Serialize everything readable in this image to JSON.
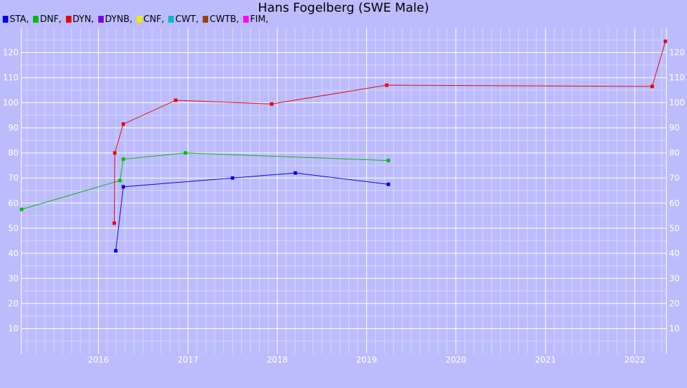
{
  "colors": {
    "background": "#bcbcfd",
    "grid_major": "#ffffff",
    "grid_minor": "#d6d6fe",
    "tick_label": "#ffffff"
  },
  "chart_data": {
    "type": "line",
    "title": "Hans Fogelberg (SWE Male)",
    "xlabel": "",
    "ylabel": "",
    "x_axis": "date",
    "xlim": [
      "2015-02-20",
      "2022-05-10"
    ],
    "ylim": [
      0,
      130
    ],
    "x_tick_labels": [
      "2016",
      "2017",
      "2018",
      "2019",
      "2020",
      "2021",
      "2022"
    ],
    "y_tick_labels": [
      "10",
      "20",
      "30",
      "40",
      "50",
      "60",
      "70",
      "80",
      "90",
      "100",
      "110",
      "120"
    ],
    "y_ticks_on_both_sides": true,
    "grid": true,
    "legend_position": "top-left",
    "legend": [
      {
        "label": "STA,",
        "color": "#0000ee"
      },
      {
        "label": "DNF,",
        "color": "#00bb00"
      },
      {
        "label": "DYN,",
        "color": "#ee0000"
      },
      {
        "label": "DYNB,",
        "color": "#7b00ee"
      },
      {
        "label": "CNF,",
        "color": "#eeee00"
      },
      {
        "label": "CWT,",
        "color": "#00bbcc"
      },
      {
        "label": "CWTB,",
        "color": "#994400"
      },
      {
        "label": "FIM,",
        "color": "#ff00ff"
      }
    ],
    "series": [
      {
        "name": "STA",
        "color": "#0000ee",
        "points": [
          {
            "x": "2016-03-12",
            "y": 41
          },
          {
            "x": "2016-04-12",
            "y": 66.5
          },
          {
            "x": "2017-07-02",
            "y": 70
          },
          {
            "x": "2018-03-16",
            "y": 72
          },
          {
            "x": "2019-03-31",
            "y": 67.5
          }
        ]
      },
      {
        "name": "DNF",
        "color": "#00bb00",
        "points": [
          {
            "x": "2015-02-21",
            "y": 57.5
          },
          {
            "x": "2016-03-29",
            "y": 69
          },
          {
            "x": "2016-04-12",
            "y": 77.5
          },
          {
            "x": "2016-12-22",
            "y": 80
          },
          {
            "x": "2019-03-31",
            "y": 77
          }
        ]
      },
      {
        "name": "DYN",
        "color": "#ee0000",
        "points": [
          {
            "x": "2016-03-06",
            "y": 52
          },
          {
            "x": "2016-03-08",
            "y": 80
          },
          {
            "x": "2016-04-12",
            "y": 91.5
          },
          {
            "x": "2016-11-12",
            "y": 101
          },
          {
            "x": "2017-12-09",
            "y": 99.5
          },
          {
            "x": "2019-03-24",
            "y": 107
          },
          {
            "x": "2022-03-13",
            "y": 106.5
          },
          {
            "x": "2022-05-06",
            "y": 124.5
          }
        ]
      }
    ]
  }
}
